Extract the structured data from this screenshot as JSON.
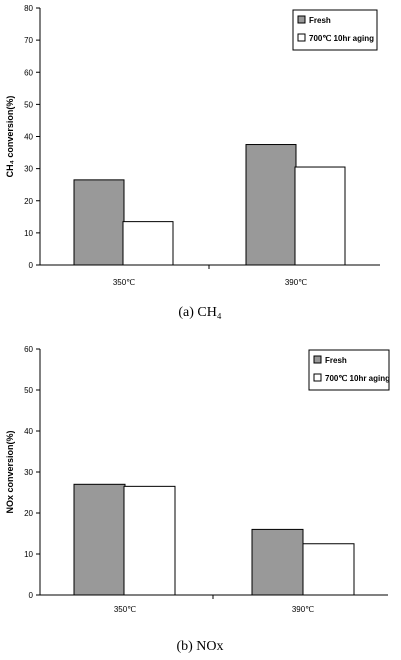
{
  "chart_data": [
    {
      "type": "bar",
      "categories": [
        "350℃",
        "390℃"
      ],
      "series": [
        {
          "name": "Fresh",
          "values": [
            26.5,
            37.5
          ],
          "color": "#999999"
        },
        {
          "name": "700℃ 10hr aging",
          "values": [
            13.5,
            30.5
          ],
          "color": "#ffffff"
        }
      ],
      "ylabel": "CH₄ conversion(%)",
      "ylim": [
        0,
        80
      ],
      "yticks": [
        0,
        10,
        20,
        30,
        40,
        50,
        60,
        70,
        80
      ],
      "legend": "top-right",
      "caption": "(a)  CH₄"
    },
    {
      "type": "bar",
      "categories": [
        "350℃",
        "390℃"
      ],
      "series": [
        {
          "name": "Fresh",
          "values": [
            27,
            16
          ],
          "color": "#999999"
        },
        {
          "name": "700℃ 10hr aging",
          "values": [
            26.5,
            12.5
          ],
          "color": "#ffffff"
        }
      ],
      "ylabel": "NOx conversion(%)",
      "ylim": [
        0,
        60
      ],
      "yticks": [
        0,
        10,
        20,
        30,
        40,
        50,
        60
      ],
      "legend": "top-right",
      "caption": "(b)  NOx"
    }
  ]
}
